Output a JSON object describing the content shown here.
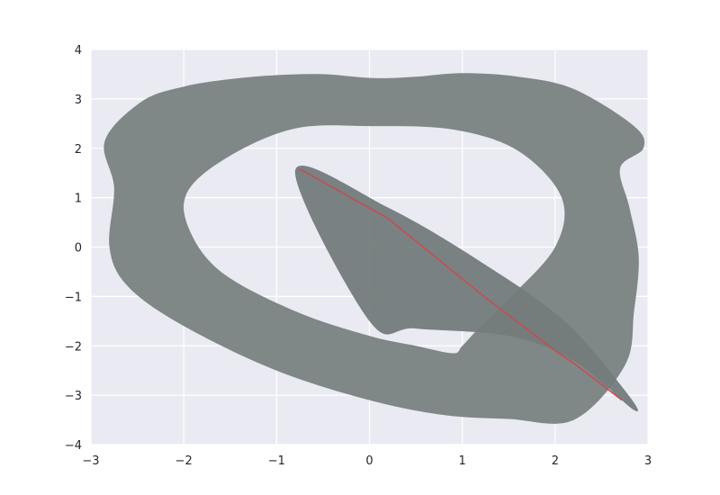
{
  "chart_data": {
    "type": "area",
    "title": "",
    "xlabel": "",
    "ylabel": "",
    "xlim": [
      -3,
      3
    ],
    "ylim": [
      -4,
      4
    ],
    "x_ticks": [
      -3,
      -2,
      -1,
      0,
      1,
      2,
      3
    ],
    "x_tick_labels": [
      "−3",
      "−2",
      "−1",
      "0",
      "1",
      "2",
      "3"
    ],
    "y_ticks": [
      4,
      3,
      2,
      1,
      0,
      -1,
      -2,
      -3,
      -4
    ],
    "y_tick_labels": [
      "4",
      "3",
      "2",
      "1",
      "0",
      "−1",
      "−2",
      "−3",
      "−4"
    ],
    "grid": true,
    "legend": "none",
    "colors": {
      "plot_background": "#eaeaf2",
      "grid": "#ffffff",
      "band_fill": "#808787",
      "band_shade": "#747b7b",
      "line": "#c44e52"
    },
    "series": [
      {
        "kind": "filled-band-outer-boundary",
        "x": [
          -2.85,
          -2.45,
          -2.0,
          -1.5,
          -1.0,
          -0.5,
          0.05,
          0.5,
          1.0,
          1.6,
          2.2,
          2.85,
          2.95,
          2.7,
          2.8,
          2.9,
          2.85,
          2.75,
          2.2,
          1.5,
          0.8,
          0.0,
          -1.0,
          -2.0,
          -2.6,
          -2.8,
          -2.75
        ],
        "y": [
          2.15,
          2.95,
          3.25,
          3.4,
          3.48,
          3.5,
          3.42,
          3.45,
          3.52,
          3.45,
          3.2,
          2.45,
          2.0,
          1.6,
          0.8,
          -0.2,
          -1.3,
          -2.4,
          -3.5,
          -3.48,
          -3.4,
          -3.1,
          -2.5,
          -1.6,
          -0.8,
          0.0,
          1.2
        ]
      },
      {
        "kind": "filled-band-inner-hole",
        "x": [
          -1.95,
          -1.5,
          -0.8,
          0.0,
          0.9,
          1.6,
          2.07,
          2.0,
          1.5,
          1.2,
          1.0,
          0.9,
          0.5,
          0.0,
          -0.8,
          -1.6,
          -1.95
        ],
        "y": [
          1.15,
          1.85,
          2.4,
          2.45,
          2.38,
          1.95,
          1.0,
          0.0,
          -1.05,
          -1.6,
          -2.0,
          -2.15,
          -2.0,
          -1.8,
          -1.3,
          -0.5,
          0.4
        ]
      },
      {
        "kind": "filled-band-crossing-strip",
        "x": [
          -0.8,
          0.2,
          1.2,
          2.1,
          2.75,
          2.85,
          2.2,
          1.5,
          0.5,
          0.0
        ],
        "y": [
          1.55,
          0.8,
          -0.3,
          -1.5,
          -2.9,
          -3.3,
          -2.3,
          -1.8,
          -1.65,
          -1.5
        ]
      },
      {
        "kind": "line",
        "name": "",
        "x": [
          -0.75,
          0.2,
          1.2,
          2.0,
          2.2,
          2.72
        ],
        "y": [
          1.58,
          0.58,
          -0.95,
          -2.1,
          -2.35,
          -3.1
        ]
      }
    ]
  }
}
